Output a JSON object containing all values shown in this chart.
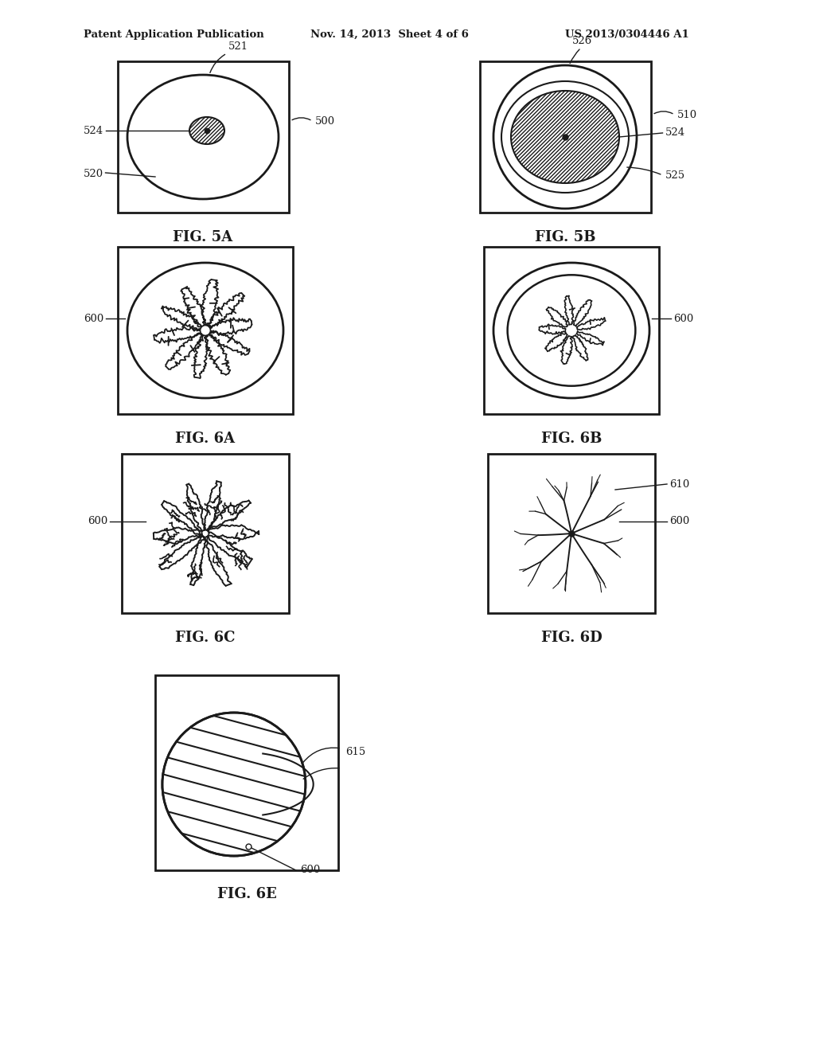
{
  "bg_color": "#ffffff",
  "line_color": "#1a1a1a",
  "header_text": "Patent Application Publication",
  "header_date": "Nov. 14, 2013  Sheet 4 of 6",
  "header_patent": "US 2013/0304446 A1"
}
